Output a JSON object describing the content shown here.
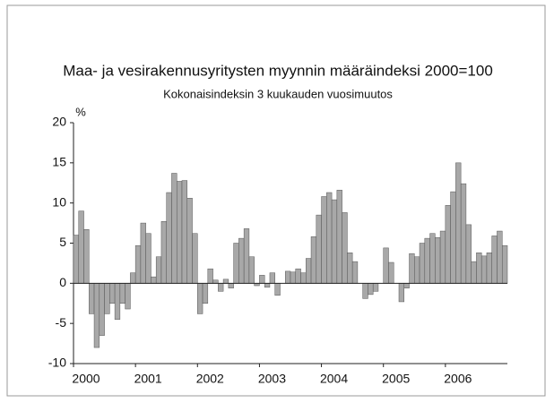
{
  "chart_data": {
    "type": "bar",
    "title": "Maa- ja vesirakennusyritysten myynnin määräindeksi 2000=100",
    "subtitle": "Kokonaisindeksin 3 kuukauden vuosimuutos",
    "y_label": "%",
    "categories": [
      "2000",
      null,
      null,
      null,
      null,
      null,
      null,
      null,
      null,
      null,
      null,
      null,
      "2001",
      null,
      null,
      null,
      null,
      null,
      null,
      null,
      null,
      null,
      null,
      null,
      "2002",
      null,
      null,
      null,
      null,
      null,
      null,
      null,
      null,
      null,
      null,
      null,
      "2003",
      null,
      null,
      null,
      null,
      null,
      null,
      null,
      null,
      null,
      null,
      null,
      "2004",
      null,
      null,
      null,
      null,
      null,
      null,
      null,
      null,
      null,
      null,
      null,
      "2005",
      null,
      null,
      null,
      null,
      null,
      null,
      null,
      null,
      null,
      null,
      null,
      "2006",
      null,
      null,
      null,
      null,
      null,
      null,
      null,
      null,
      null,
      null,
      null
    ],
    "values": [
      6,
      9,
      6.7,
      -3.8,
      -8,
      -6.5,
      -3.8,
      -2.5,
      -4.5,
      -2.5,
      -3.2,
      1.3,
      4.7,
      7.5,
      6.2,
      0.8,
      3.3,
      7.7,
      11.3,
      13.7,
      12.7,
      12.8,
      10.6,
      6.2,
      -3.8,
      -2.5,
      1.8,
      0.4,
      -1,
      0.5,
      -0.6,
      5,
      5.6,
      6.8,
      3.3,
      -0.3,
      1,
      -0.5,
      1.3,
      -1.5,
      0,
      1.5,
      1.4,
      1.8,
      1.3,
      3.1,
      5.8,
      8.5,
      10.8,
      11.3,
      10.4,
      11.6,
      8.8,
      3.8,
      2.7,
      0,
      -1.9,
      -1.4,
      -1,
      0,
      4.4,
      2.6,
      0,
      -2.3,
      -0.6,
      3.7,
      3.3,
      5,
      5.6,
      6.2,
      5.7,
      6.5,
      9.7,
      11.4,
      15,
      12.4,
      7.3,
      2.7,
      3.8,
      3.4,
      3.8,
      5.9,
      6.5,
      4.7
    ],
    "color": "#a8a8a8",
    "ylim": [
      -10,
      20
    ],
    "yticks": [
      -10,
      -5,
      0,
      5,
      10,
      15,
      20
    ]
  }
}
